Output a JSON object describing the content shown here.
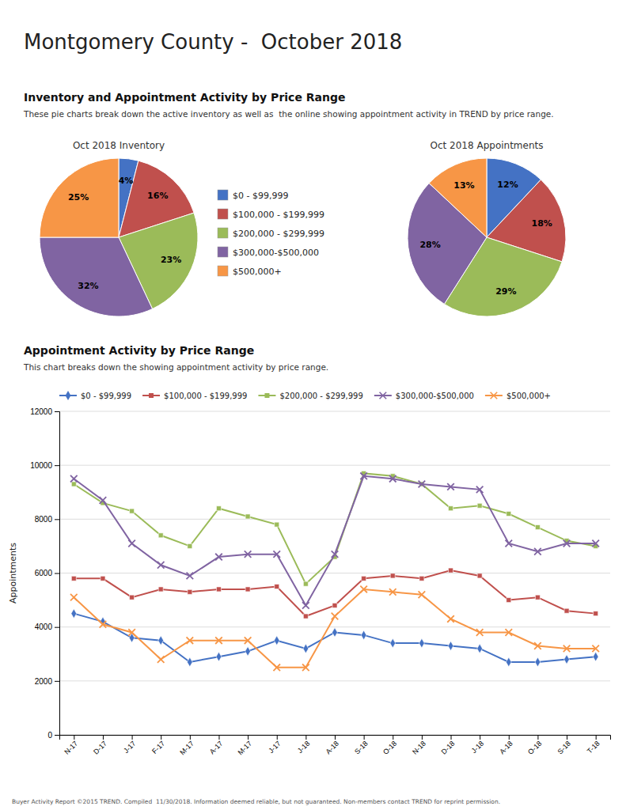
{
  "title": "Montgomery County -  October 2018",
  "annotations": [
    "Inventory and Appointment Activity by Price Range",
    "These pie charts break down the active inventory as well as  the online showing appointment activity in TREND by price range.",
    "Appointment Activity by Price Range",
    "This chart breaks down the showing appointment activity by price range.",
    "Buyer Activity Report ©2015 TREND. Compiled  11/30/2018. Information deemed reliable, but not guaranteed. Non-members contact TREND for reprint permission."
  ],
  "chart_data": [
    {
      "type": "pie",
      "title": "Oct 2018 Inventory",
      "categories": [
        "$0 - $99,999",
        "$100,000 - $199,999",
        "$200,000 - $299,999",
        "$300,000-$500,000",
        "$500,000+"
      ],
      "values": [
        4,
        16,
        23,
        32,
        25
      ],
      "value_labels": [
        "4%",
        "16%",
        "23%",
        "32%",
        "25%"
      ],
      "colors": [
        "#4472C4",
        "#C0504D",
        "#9BBB59",
        "#8064A2",
        "#F79646"
      ],
      "data_labels": true,
      "legend": "right"
    },
    {
      "type": "pie",
      "title": "Oct 2018 Appointments",
      "categories": [
        "$0 - $99,999",
        "$100,000 - $199,999",
        "$200,000 - $299,999",
        "$300,000-$500,000",
        "$500,000+"
      ],
      "values": [
        12,
        18,
        29,
        28,
        13
      ],
      "value_labels": [
        "12%",
        "18%",
        "29%",
        "28%",
        "13%"
      ],
      "colors": [
        "#4472C4",
        "#C0504D",
        "#9BBB59",
        "#8064A2",
        "#F79646"
      ],
      "data_labels": true
    },
    {
      "type": "line",
      "ylabel": "Appointments",
      "categories": [
        "N-17",
        "D-17",
        "J-17",
        "F-17",
        "M-17",
        "A-17",
        "M-17",
        "J-17",
        "J-18",
        "A-18",
        "S-18",
        "O-18",
        "N-18",
        "D-18",
        "J-18",
        "A-18",
        "O-18",
        "S-18",
        "T-18"
      ],
      "series": [
        {
          "name": "$0 - $99,999",
          "color": "#4472C4",
          "marker": "diamond",
          "values": [
            4500,
            4200,
            3600,
            3500,
            2700,
            2900,
            3100,
            3500,
            3200,
            3800,
            3700,
            3400,
            3400,
            3300,
            3200,
            2700,
            2700,
            2800,
            2900
          ]
        },
        {
          "name": "$100,000 - $199,999",
          "color": "#C0504D",
          "marker": "square",
          "values": [
            5800,
            5800,
            5100,
            5400,
            5300,
            5400,
            5400,
            5500,
            4400,
            4800,
            5800,
            5900,
            5800,
            6100,
            5900,
            5000,
            5100,
            4600,
            4500
          ]
        },
        {
          "name": "$200,000 - $299,999",
          "color": "#9BBB59",
          "marker": "square",
          "values": [
            9300,
            8600,
            8300,
            7400,
            7000,
            8400,
            8100,
            7800,
            5600,
            6600,
            9700,
            9600,
            9300,
            8400,
            8500,
            8200,
            7700,
            7200,
            7000
          ]
        },
        {
          "name": "$300,000-$500,000",
          "color": "#8064A2",
          "marker": "x",
          "values": [
            9500,
            8700,
            7100,
            6300,
            5900,
            6600,
            6700,
            6700,
            4800,
            6700,
            9600,
            9500,
            9300,
            9200,
            9100,
            7100,
            6800,
            7100,
            7100
          ]
        },
        {
          "name": "$500,000+",
          "color": "#F79646",
          "marker": "x",
          "values": [
            5100,
            4100,
            3800,
            2800,
            3500,
            3500,
            3500,
            2500,
            2500,
            4400,
            5400,
            5300,
            5200,
            4300,
            3800,
            3800,
            3300,
            3200,
            3200
          ]
        }
      ],
      "ylim": [
        0,
        12000
      ],
      "yticks": [
        0,
        2000,
        4000,
        6000,
        8000,
        10000,
        12000
      ],
      "grid": true,
      "legend": "top-left"
    }
  ]
}
